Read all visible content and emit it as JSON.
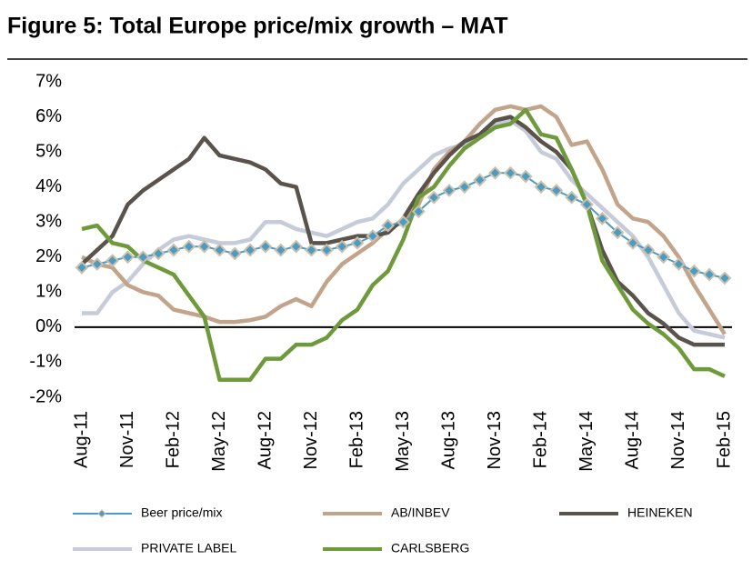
{
  "chart_data": {
    "type": "line",
    "title": "Figure 5: Total Europe price/mix growth – MAT",
    "categories": [
      "Aug-11",
      null,
      null,
      "Nov-11",
      null,
      null,
      "Feb-12",
      null,
      null,
      "May-12",
      null,
      null,
      "Aug-12",
      null,
      null,
      "Nov-12",
      null,
      null,
      "Feb-13",
      null,
      null,
      "May-13",
      null,
      null,
      "Aug-13",
      null,
      null,
      "Nov-13",
      null,
      null,
      "Feb-14",
      null,
      null,
      "May-14",
      null,
      null,
      "Aug-14",
      null,
      null,
      "Nov-14",
      null,
      null,
      "Feb-15"
    ],
    "series": [
      {
        "name": "Beer price/mix",
        "color": "#4a9cc4",
        "marker": "diamond",
        "values": [
          1.7,
          1.8,
          1.9,
          2.0,
          2.0,
          2.1,
          2.2,
          2.3,
          2.3,
          2.2,
          2.1,
          2.2,
          2.3,
          2.2,
          2.3,
          2.2,
          2.2,
          2.3,
          2.4,
          2.6,
          2.9,
          3.0,
          3.3,
          3.7,
          3.9,
          4.0,
          4.2,
          4.4,
          4.4,
          4.3,
          4.0,
          3.9,
          3.7,
          3.5,
          3.1,
          2.7,
          2.4,
          2.2,
          2.0,
          1.8,
          1.6,
          1.5,
          1.4
        ]
      },
      {
        "name": "AB/INBEV",
        "color": "#c2a48a",
        "values": [
          2.0,
          1.8,
          1.7,
          1.2,
          1.0,
          0.9,
          0.5,
          0.4,
          0.3,
          0.15,
          0.15,
          0.2,
          0.3,
          0.6,
          0.8,
          0.6,
          1.3,
          1.8,
          2.1,
          2.4,
          2.8,
          3.0,
          3.5,
          4.5,
          5.0,
          5.3,
          5.8,
          6.2,
          6.3,
          6.2,
          6.3,
          6.0,
          5.2,
          5.3,
          4.5,
          3.5,
          3.1,
          3.0,
          2.6,
          2.0,
          1.2,
          0.5,
          -0.2
        ]
      },
      {
        "name": "HEINEKEN",
        "color": "#5a534c",
        "values": [
          1.8,
          2.2,
          2.6,
          3.5,
          3.9,
          4.2,
          4.5,
          4.8,
          5.4,
          4.9,
          4.8,
          4.7,
          4.5,
          4.1,
          4.0,
          2.4,
          2.4,
          2.5,
          2.6,
          2.6,
          2.7,
          3.1,
          3.8,
          4.4,
          4.9,
          5.3,
          5.5,
          5.9,
          6.0,
          5.7,
          5.3,
          5.0,
          4.5,
          3.5,
          2.2,
          1.3,
          0.9,
          0.4,
          0.1,
          -0.3,
          -0.5,
          -0.5,
          -0.5
        ]
      },
      {
        "name": "PRIVATE LABEL",
        "color": "#c6cbd9",
        "values": [
          0.4,
          0.4,
          1.0,
          1.3,
          1.8,
          2.2,
          2.5,
          2.6,
          2.5,
          2.4,
          2.4,
          2.5,
          3.0,
          3.0,
          2.8,
          2.7,
          2.6,
          2.8,
          3.0,
          3.1,
          3.5,
          4.1,
          4.5,
          4.9,
          5.1,
          5.2,
          5.5,
          5.8,
          5.9,
          5.6,
          5.0,
          4.8,
          4.2,
          3.8,
          3.4,
          3.0,
          2.6,
          2.0,
          1.2,
          0.4,
          -0.1,
          -0.2,
          -0.3
        ]
      },
      {
        "name": "CARLSBERG",
        "color": "#6e9a3c",
        "values": [
          2.8,
          2.9,
          2.4,
          2.3,
          1.9,
          1.7,
          1.5,
          0.9,
          0.3,
          -1.5,
          -1.5,
          -1.5,
          -0.9,
          -0.9,
          -0.5,
          -0.5,
          -0.3,
          0.2,
          0.5,
          1.2,
          1.6,
          2.5,
          3.7,
          4.0,
          4.6,
          5.1,
          5.4,
          5.7,
          5.8,
          6.2,
          5.5,
          5.4,
          4.5,
          3.5,
          1.9,
          1.2,
          0.5,
          0.1,
          -0.2,
          -0.6,
          -1.2,
          -1.2,
          -1.4
        ]
      }
    ],
    "ylim": [
      -2,
      7
    ],
    "yticks": [
      {
        "value": -2,
        "label": "-2%"
      },
      {
        "value": -1,
        "label": "-1%"
      },
      {
        "value": 0,
        "label": "0%"
      },
      {
        "value": 1,
        "label": "1%"
      },
      {
        "value": 2,
        "label": "2%"
      },
      {
        "value": 3,
        "label": "3%"
      },
      {
        "value": 4,
        "label": "4%"
      },
      {
        "value": 5,
        "label": "5%"
      },
      {
        "value": 6,
        "label": "6%"
      },
      {
        "value": 7,
        "label": "7%"
      }
    ],
    "grid": false,
    "legend": "bottom"
  }
}
